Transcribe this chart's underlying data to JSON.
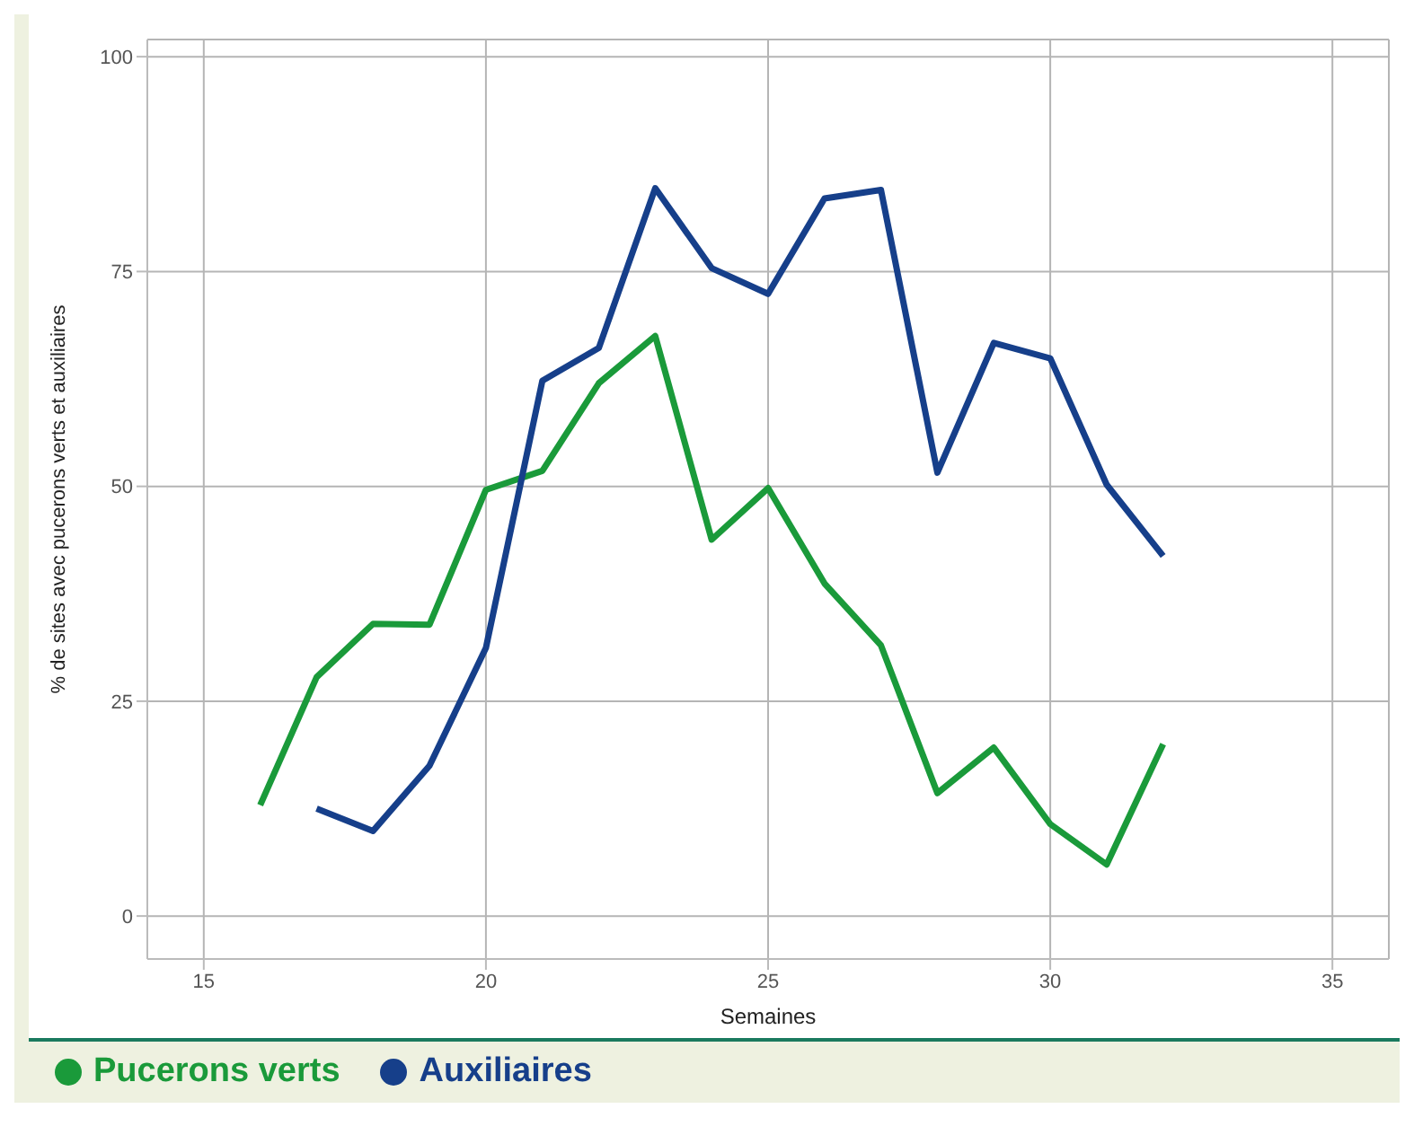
{
  "chart_data": {
    "type": "line",
    "xlabel": "Semaines",
    "ylabel": "% de sites avec pucerons verts et auxiliaires",
    "x": [
      16,
      17,
      18,
      19,
      20,
      21,
      22,
      23,
      24,
      25,
      26,
      27,
      28,
      29,
      30,
      31,
      32
    ],
    "series": [
      {
        "name": "Pucerons verts",
        "color": "#1a9a3a",
        "values": [
          12.9,
          27.8,
          34,
          33.9,
          49.6,
          51.8,
          62,
          67.5,
          43.8,
          49.8,
          38.7,
          31.5,
          14.3,
          19.6,
          10.7,
          6,
          20
        ]
      },
      {
        "name": "Auxiliaires",
        "color": "#163f8a",
        "values": [
          null,
          12.5,
          9.9,
          17.5,
          31.2,
          62.3,
          66.1,
          84.7,
          75.4,
          72.4,
          83.5,
          84.5,
          51.6,
          66.7,
          64.9,
          50.2,
          41.9
        ]
      }
    ],
    "xlim": [
      14,
      36
    ],
    "xticks": [
      15,
      20,
      25,
      30,
      35
    ],
    "ylim": [
      -5,
      102
    ],
    "yticks": [
      0,
      25,
      50,
      75,
      100
    ],
    "grid": true,
    "legend": "bottom",
    "marker": "none",
    "line_style": "solid"
  }
}
